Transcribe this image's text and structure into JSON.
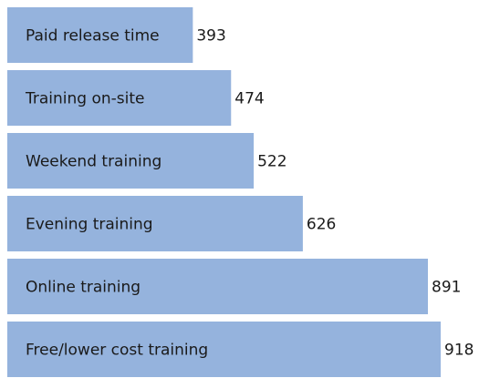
{
  "chart_data": {
    "type": "bar",
    "orientation": "horizontal",
    "categories": [
      "Paid release time",
      "Training on-site",
      "Weekend training",
      "Evening training",
      "Online training",
      "Free/lower cost training"
    ],
    "values": [
      393,
      474,
      522,
      626,
      891,
      918
    ],
    "color": "#95b3dd"
  }
}
